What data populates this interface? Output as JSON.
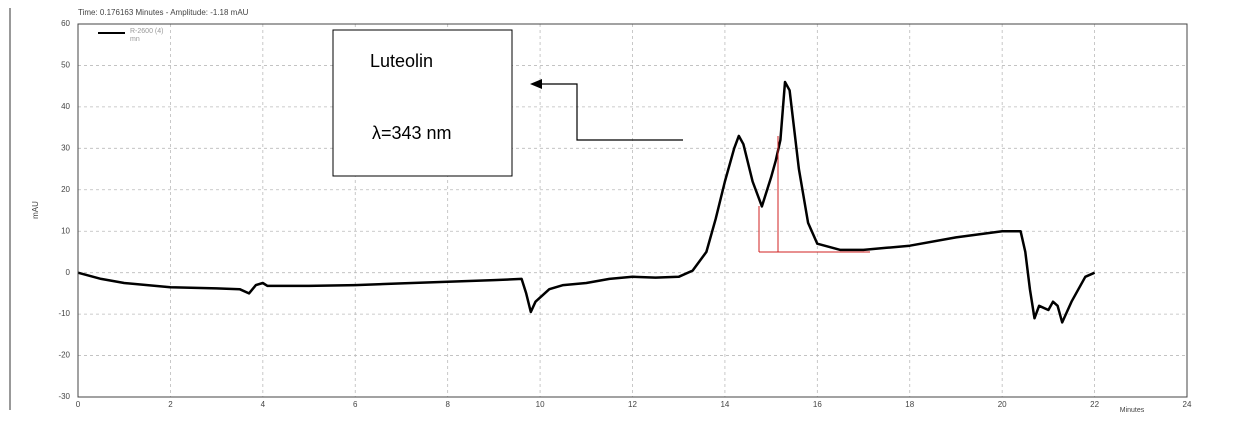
{
  "chart_data": {
    "type": "line",
    "title": "Time: 0.176163 Minutes - Amplitude: -1.18 mAU",
    "xlabel": "Minutes",
    "ylabel": "mAU",
    "legend_note": "mn",
    "annotations": [
      "Luteolin",
      "λ=343 nm"
    ],
    "x": [
      0,
      0.5,
      1,
      2,
      3,
      3.5,
      3.7,
      3.85,
      4,
      4.1,
      5,
      6,
      7,
      8,
      9,
      9.6,
      9.7,
      9.8,
      9.9,
      10.2,
      10.5,
      11,
      11.5,
      12,
      12.5,
      13,
      13.3,
      13.6,
      13.8,
      14,
      14.2,
      14.3,
      14.4,
      14.6,
      14.8,
      15,
      15.1,
      15.2,
      15.3,
      15.4,
      15.6,
      15.8,
      16,
      16.5,
      17,
      17.5,
      18,
      19,
      20,
      20.4,
      20.5,
      20.6,
      20.7,
      20.8,
      21,
      21.1,
      21.2,
      21.3,
      21.5,
      21.8,
      22
    ],
    "series": [
      {
        "name": "R-2600 (4)",
        "color": "#000000",
        "values": [
          0,
          -1.5,
          -2.5,
          -3.5,
          -3.8,
          -4,
          -5,
          -3,
          -2.5,
          -3.2,
          -3.2,
          -3,
          -2.6,
          -2.2,
          -1.8,
          -1.5,
          -5,
          -9.5,
          -7,
          -4,
          -3,
          -2.5,
          -1.5,
          -1,
          -1.2,
          -1,
          0.5,
          5,
          13,
          22,
          30,
          33,
          31,
          22,
          16,
          23,
          27,
          32,
          46,
          44,
          25,
          12,
          7,
          5.5,
          5.5,
          6,
          6.5,
          8.5,
          10,
          10,
          5,
          -4,
          -11,
          -8,
          -9,
          -7,
          -8,
          -12,
          -7,
          -1,
          0
        ]
      }
    ],
    "xlim": [
      0,
      24
    ],
    "xticks": [
      0,
      2,
      4,
      6,
      8,
      10,
      12,
      14,
      16,
      18,
      20,
      22,
      24
    ],
    "ylim": [
      -30,
      60
    ],
    "yticks": [
      -30,
      -20,
      -10,
      0,
      10,
      20,
      30,
      40,
      50,
      60
    ],
    "grid": true
  }
}
